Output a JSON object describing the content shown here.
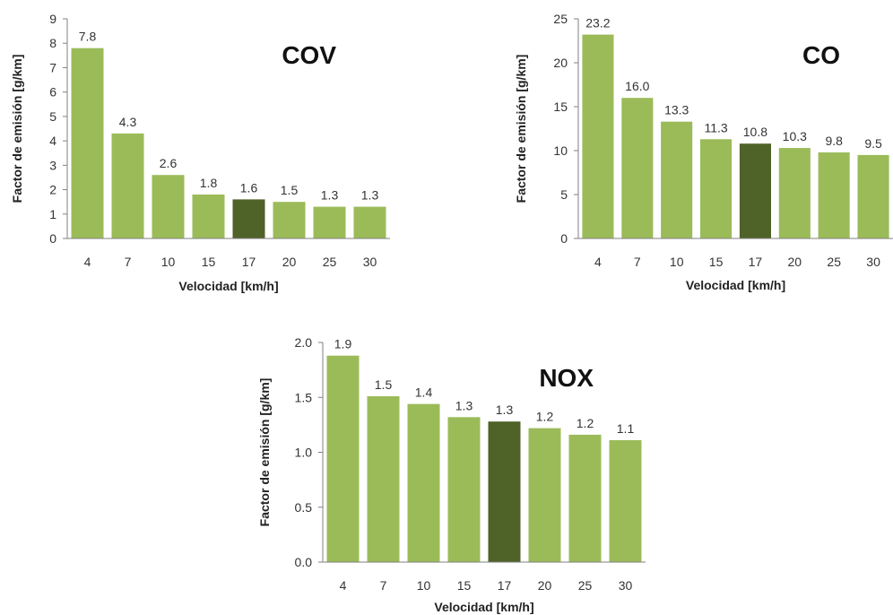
{
  "colors": {
    "bar": "#9bbb59",
    "highlight": "#4f6228",
    "axis": "#808080"
  },
  "chart_data": [
    {
      "type": "bar",
      "title": "COV",
      "xlabel": "Velocidad  [km/h]",
      "ylabel": "Factor de emisión  [g/km]",
      "categories": [
        "4",
        "7",
        "10",
        "15",
        "17",
        "20",
        "25",
        "30"
      ],
      "values": [
        7.8,
        4.3,
        2.6,
        1.8,
        1.6,
        1.5,
        1.3,
        1.3
      ],
      "value_labels": [
        "7.8",
        "4.3",
        "2.6",
        "1.8",
        "1.6",
        "1.5",
        "1.3",
        "1.3"
      ],
      "yticks": [
        "0",
        "1",
        "2",
        "3",
        "4",
        "5",
        "6",
        "7",
        "8",
        "9"
      ],
      "ylim": [
        0,
        9
      ],
      "highlight_category": "17",
      "grid": false
    },
    {
      "type": "bar",
      "title": "CO",
      "xlabel": "Velocidad  [km/h]",
      "ylabel": "Factor de emisión  [g/km]",
      "categories": [
        "4",
        "7",
        "10",
        "15",
        "17",
        "20",
        "25",
        "30"
      ],
      "values": [
        23.2,
        16.0,
        13.3,
        11.3,
        10.8,
        10.3,
        9.8,
        9.5
      ],
      "value_labels": [
        "23.2",
        "16.0",
        "13.3",
        "11.3",
        "10.8",
        "10.3",
        "9.8",
        "9.5"
      ],
      "yticks": [
        "0",
        "5",
        "10",
        "15",
        "20",
        "25"
      ],
      "ylim": [
        0,
        25
      ],
      "highlight_category": "17",
      "grid": false
    },
    {
      "type": "bar",
      "title": "NOX",
      "xlabel": "Velocidad  [km/h]",
      "ylabel": "Factor de emisión  [g/km]",
      "categories": [
        "4",
        "7",
        "10",
        "15",
        "17",
        "20",
        "25",
        "30"
      ],
      "values": [
        1.88,
        1.51,
        1.44,
        1.32,
        1.28,
        1.22,
        1.16,
        1.11
      ],
      "value_labels": [
        "1.9",
        "1.5",
        "1.4",
        "1.3",
        "1.3",
        "1.2",
        "1.2",
        "1.1"
      ],
      "yticks": [
        "0.0",
        "0.5",
        "1.0",
        "1.5",
        "2.0"
      ],
      "ylim": [
        0,
        2.0
      ],
      "highlight_category": "17",
      "grid": false
    }
  ]
}
